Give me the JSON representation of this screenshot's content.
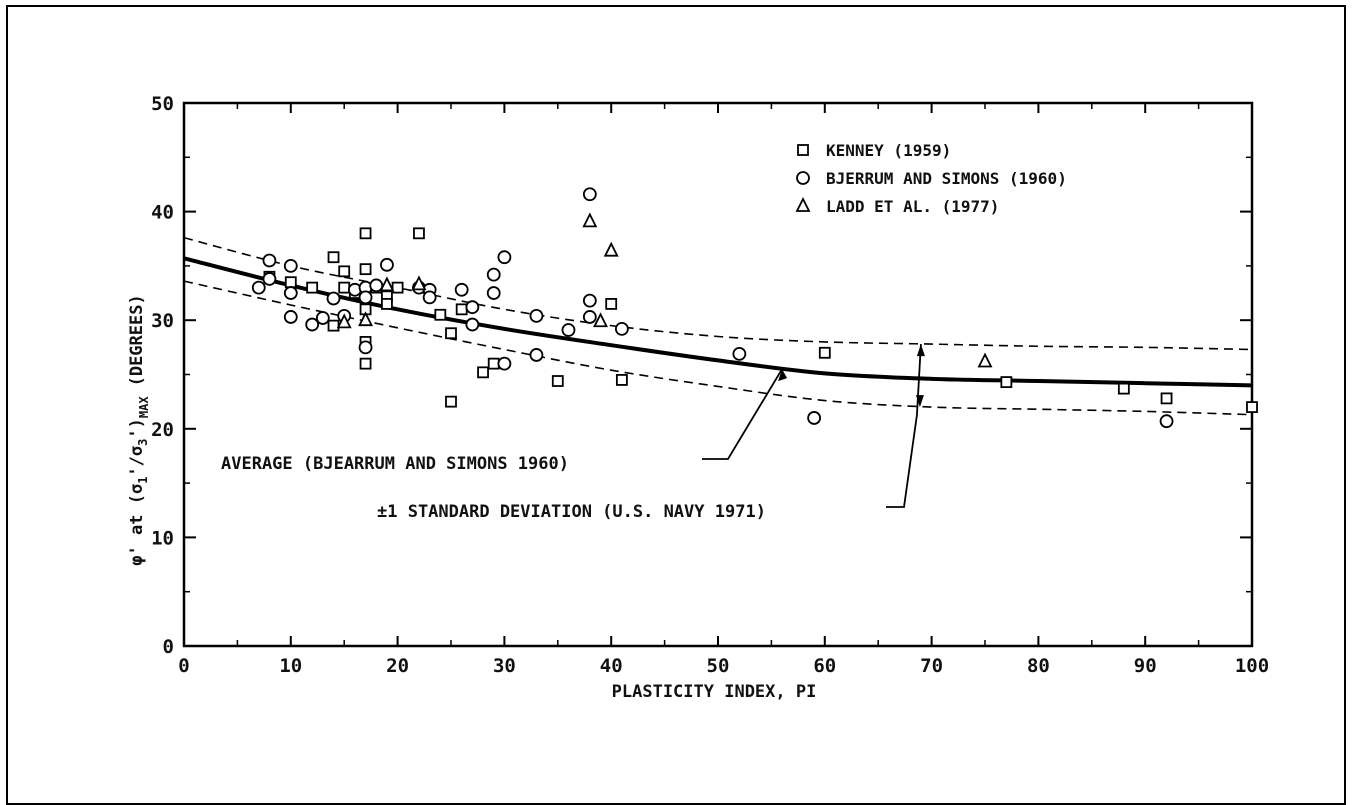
{
  "chart_data": {
    "type": "scatter",
    "title": "",
    "xlabel": "PLASTICITY INDEX, PI",
    "ylabel_parts": {
      "phi": "φ'",
      "at": " at (",
      "s1": "σ",
      "sub1": "1",
      "prime1": "'",
      "slash": "/",
      "s3": "σ",
      "sub3": "3",
      "prime3": "'",
      "close": ")",
      "max": "MAX",
      "deg": "(DEGREES)"
    },
    "xlim": [
      0,
      100
    ],
    "ylim": [
      0,
      50
    ],
    "x_ticks": [
      0,
      10,
      20,
      30,
      40,
      50,
      60,
      70,
      80,
      90,
      100
    ],
    "y_ticks": [
      0,
      10,
      20,
      30,
      40,
      50
    ],
    "grid": false,
    "legend_position": "top-right",
    "series": [
      {
        "name": "KENNEY (1959)",
        "marker": "square",
        "points": [
          [
            8,
            34
          ],
          [
            10,
            33.5
          ],
          [
            12,
            33
          ],
          [
            14,
            29.5
          ],
          [
            14,
            35.8
          ],
          [
            15,
            33
          ],
          [
            15,
            34.5
          ],
          [
            16,
            32.5
          ],
          [
            17,
            38
          ],
          [
            17,
            34.7
          ],
          [
            17,
            31
          ],
          [
            17,
            28
          ],
          [
            17,
            26
          ],
          [
            18,
            33
          ],
          [
            19,
            32.2
          ],
          [
            19,
            31.5
          ],
          [
            20,
            33
          ],
          [
            22,
            38
          ],
          [
            24,
            30.5
          ],
          [
            25,
            28.8
          ],
          [
            25,
            22.5
          ],
          [
            26,
            31
          ],
          [
            28,
            25.2
          ],
          [
            29,
            26
          ],
          [
            35,
            24.4
          ],
          [
            40,
            31.5
          ],
          [
            41,
            24.5
          ],
          [
            60,
            27
          ],
          [
            77,
            24.3
          ],
          [
            88,
            23.7
          ],
          [
            92,
            22.8
          ],
          [
            100,
            22
          ]
        ]
      },
      {
        "name": "BJERRUM AND SIMONS (1960)",
        "marker": "circle",
        "points": [
          [
            7,
            33
          ],
          [
            8,
            35.5
          ],
          [
            8,
            33.8
          ],
          [
            10,
            35
          ],
          [
            10,
            30.3
          ],
          [
            10,
            32.5
          ],
          [
            12,
            29.6
          ],
          [
            13,
            30.2
          ],
          [
            14,
            32
          ],
          [
            15,
            30.4
          ],
          [
            16,
            32.8
          ],
          [
            17,
            33
          ],
          [
            17,
            32.1
          ],
          [
            17,
            27.5
          ],
          [
            18,
            33.2
          ],
          [
            19,
            35.1
          ],
          [
            22,
            33
          ],
          [
            23,
            32.8
          ],
          [
            23,
            32.1
          ],
          [
            26,
            32.8
          ],
          [
            27,
            31.2
          ],
          [
            27,
            29.6
          ],
          [
            29,
            34.2
          ],
          [
            29,
            32.5
          ],
          [
            30,
            35.8
          ],
          [
            30,
            26
          ],
          [
            33,
            30.4
          ],
          [
            33,
            26.8
          ],
          [
            36,
            29.1
          ],
          [
            38,
            41.6
          ],
          [
            38,
            31.8
          ],
          [
            38,
            30.3
          ],
          [
            41,
            29.2
          ],
          [
            52,
            26.9
          ],
          [
            59,
            21
          ],
          [
            92,
            20.7
          ]
        ]
      },
      {
        "name": "LADD ET AL. (1977)",
        "marker": "triangle",
        "points": [
          [
            15,
            29.8
          ],
          [
            17,
            30
          ],
          [
            19,
            33.2
          ],
          [
            22,
            33.3
          ],
          [
            38,
            39.1
          ],
          [
            39,
            29.9
          ],
          [
            40,
            36.4
          ],
          [
            75,
            26.2
          ]
        ]
      }
    ],
    "curves": [
      {
        "name": "AVERAGE (BJEARRUM AND SIMONS 1960)",
        "style": "solid",
        "points": [
          [
            0,
            35.7
          ],
          [
            10,
            33.2
          ],
          [
            20,
            31
          ],
          [
            30,
            29.2
          ],
          [
            40,
            27.7
          ],
          [
            50,
            26.3
          ],
          [
            60,
            25.1
          ],
          [
            70,
            24.6
          ],
          [
            80,
            24.4
          ],
          [
            90,
            24.2
          ],
          [
            100,
            24
          ]
        ]
      },
      {
        "name": "±1 STANDARD DEVIATION (U.S. NAVY 1971)",
        "style": "dashed",
        "points": [
          [
            0,
            37.6
          ],
          [
            10,
            35
          ],
          [
            20,
            33
          ],
          [
            30,
            31
          ],
          [
            40,
            29.5
          ],
          [
            50,
            28.5
          ],
          [
            60,
            28
          ],
          [
            70,
            27.8
          ],
          [
            80,
            27.6
          ],
          [
            90,
            27.5
          ],
          [
            100,
            27.3
          ]
        ]
      },
      {
        "name": "±1 STANDARD DEVIATION (U.S. NAVY 1971)",
        "style": "dashed",
        "points": [
          [
            0,
            33.6
          ],
          [
            10,
            31.4
          ],
          [
            20,
            29.3
          ],
          [
            30,
            27.3
          ],
          [
            40,
            25.4
          ],
          [
            50,
            23.9
          ],
          [
            60,
            22.6
          ],
          [
            70,
            22
          ],
          [
            80,
            21.8
          ],
          [
            90,
            21.6
          ],
          [
            100,
            21.3
          ]
        ]
      }
    ],
    "annotations": [
      {
        "text": "AVERAGE (BJEARRUM AND SIMONS 1960)",
        "points_to": [
          56,
          25.5
        ]
      },
      {
        "text": "±1 STANDARD DEVIATION (U.S. NAVY 1971)",
        "points_to": [
          69,
          27.8
        ]
      }
    ]
  }
}
